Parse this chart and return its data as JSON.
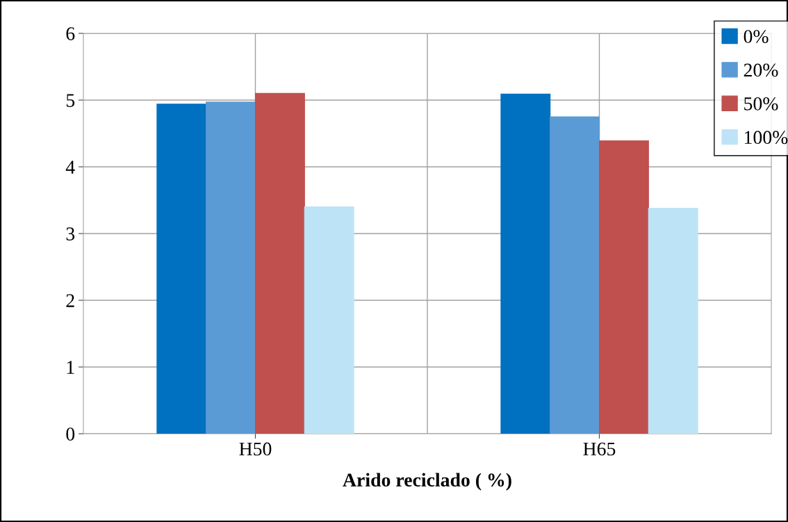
{
  "chart_data": {
    "type": "bar",
    "xlabel": "Arido reciclado ( %)",
    "categories": [
      "H50",
      "H65"
    ],
    "series": [
      {
        "name": "0%",
        "color": "#0070c0",
        "values": [
          4.94,
          5.09
        ]
      },
      {
        "name": "20%",
        "color": "#5b9bd5",
        "values": [
          4.97,
          4.75
        ]
      },
      {
        "name": "50%",
        "color": "#c0504d",
        "values": [
          5.1,
          4.39
        ]
      },
      {
        "name": "100%",
        "color": "#bde3f7",
        "values": [
          3.4,
          3.38
        ]
      }
    ],
    "ylim": [
      0,
      6
    ],
    "yticks": [
      0,
      1,
      2,
      3,
      4,
      5,
      6
    ],
    "grid": true,
    "legend": "top right"
  }
}
